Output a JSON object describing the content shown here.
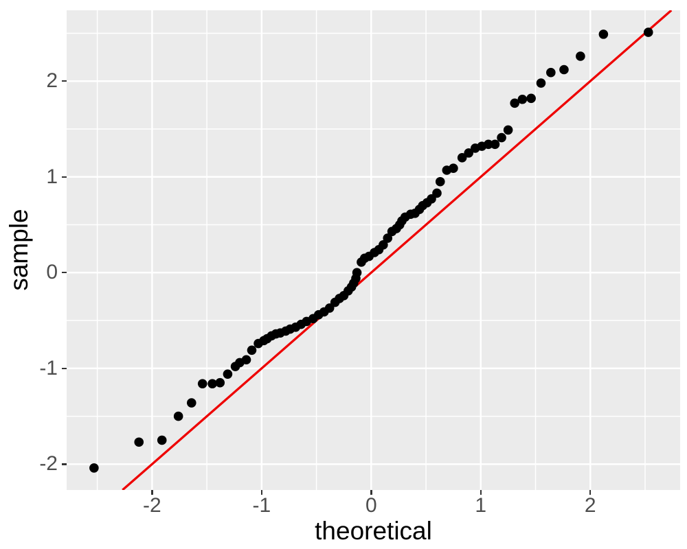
{
  "chart_data": {
    "type": "scatter",
    "subtype": "qq-plot",
    "title": "",
    "xlabel": "theoretical",
    "ylabel": "sample",
    "xlim": [
      -2.78,
      2.82
    ],
    "ylim": [
      -2.27,
      2.74
    ],
    "grid": "on",
    "legend": "none",
    "x_ticks": {
      "values": [
        -2,
        -1,
        0,
        1,
        2
      ],
      "labels": [
        "-2",
        "-1",
        "0",
        "1",
        "2"
      ]
    },
    "y_ticks": {
      "values": [
        -2,
        -1,
        0,
        1,
        2
      ],
      "labels": [
        "-2",
        "-1",
        "0",
        "1",
        "2"
      ]
    },
    "x_minor_ticks": [
      -2.5,
      -1.5,
      -0.5,
      0.5,
      1.5,
      2.5
    ],
    "y_minor_ticks": [
      -1.5,
      -0.5,
      0.5,
      1.5,
      2.5
    ],
    "reference_line": {
      "slope": 1,
      "intercept": 0,
      "color": "#EE0000"
    },
    "colors": {
      "panel_bg": "#EBEBEB",
      "grid": "#FFFFFF",
      "point": "#000000",
      "tick_label": "#4D4D4D",
      "tick_mark": "#333333",
      "axis_title": "#000000"
    },
    "points": [
      [
        -2.53,
        -2.04
      ],
      [
        -2.12,
        -1.77
      ],
      [
        -1.91,
        -1.75
      ],
      [
        -1.76,
        -1.5
      ],
      [
        -1.64,
        -1.36
      ],
      [
        -1.54,
        -1.16
      ],
      [
        -1.45,
        -1.16
      ],
      [
        -1.38,
        -1.15
      ],
      [
        -1.31,
        -1.06
      ],
      [
        -1.24,
        -0.98
      ],
      [
        -1.2,
        -0.94
      ],
      [
        -1.14,
        -0.91
      ],
      [
        -1.09,
        -0.81
      ],
      [
        -1.03,
        -0.74
      ],
      [
        -0.98,
        -0.71
      ],
      [
        -0.95,
        -0.69
      ],
      [
        -0.91,
        -0.66
      ],
      [
        -0.87,
        -0.64
      ],
      [
        -0.83,
        -0.63
      ],
      [
        -0.78,
        -0.61
      ],
      [
        -0.74,
        -0.59
      ],
      [
        -0.69,
        -0.57
      ],
      [
        -0.64,
        -0.54
      ],
      [
        -0.59,
        -0.51
      ],
      [
        -0.53,
        -0.48
      ],
      [
        -0.48,
        -0.44
      ],
      [
        -0.43,
        -0.41
      ],
      [
        -0.38,
        -0.37
      ],
      [
        -0.33,
        -0.31
      ],
      [
        -0.29,
        -0.27
      ],
      [
        -0.25,
        -0.24
      ],
      [
        -0.21,
        -0.19
      ],
      [
        -0.18,
        -0.15
      ],
      [
        -0.16,
        -0.11
      ],
      [
        -0.14,
        -0.06
      ],
      [
        -0.13,
        0.0
      ],
      [
        -0.09,
        0.11
      ],
      [
        -0.06,
        0.15
      ],
      [
        -0.02,
        0.17
      ],
      [
        0.03,
        0.21
      ],
      [
        0.07,
        0.24
      ],
      [
        0.11,
        0.29
      ],
      [
        0.15,
        0.36
      ],
      [
        0.19,
        0.43
      ],
      [
        0.23,
        0.46
      ],
      [
        0.26,
        0.5
      ],
      [
        0.28,
        0.54
      ],
      [
        0.31,
        0.58
      ],
      [
        0.36,
        0.61
      ],
      [
        0.4,
        0.62
      ],
      [
        0.44,
        0.66
      ],
      [
        0.47,
        0.7
      ],
      [
        0.51,
        0.73
      ],
      [
        0.55,
        0.77
      ],
      [
        0.6,
        0.83
      ],
      [
        0.63,
        0.95
      ],
      [
        0.69,
        1.07
      ],
      [
        0.75,
        1.09
      ],
      [
        0.83,
        1.2
      ],
      [
        0.89,
        1.25
      ],
      [
        0.95,
        1.3
      ],
      [
        1.01,
        1.32
      ],
      [
        1.07,
        1.34
      ],
      [
        1.13,
        1.34
      ],
      [
        1.19,
        1.41
      ],
      [
        1.25,
        1.49
      ],
      [
        1.31,
        1.77
      ],
      [
        1.38,
        1.81
      ],
      [
        1.46,
        1.82
      ],
      [
        1.55,
        1.98
      ],
      [
        1.64,
        2.09
      ],
      [
        1.76,
        2.12
      ],
      [
        1.91,
        2.26
      ],
      [
        2.12,
        2.49
      ],
      [
        2.53,
        2.51
      ]
    ]
  }
}
